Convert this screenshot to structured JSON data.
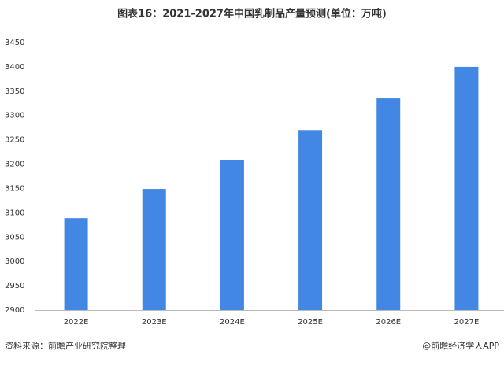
{
  "chart_data": {
    "type": "bar",
    "title": "图表16：2021-2027年中国乳制品产量预测(单位：万吨)",
    "categories": [
      "2022E",
      "2023E",
      "2024E",
      "2025E",
      "2026E",
      "2027E"
    ],
    "values": [
      3089,
      3149,
      3209,
      3270,
      3335,
      3400
    ],
    "color": "#4287e3",
    "ylim": [
      2900,
      3450
    ],
    "yticks": [
      2900,
      2950,
      3000,
      3050,
      3100,
      3150,
      3200,
      3250,
      3300,
      3350,
      3400,
      3450
    ],
    "grid": false,
    "source": "资料来源：前瞻产业研究院整理",
    "credit": "@前瞻经济学人APP"
  }
}
